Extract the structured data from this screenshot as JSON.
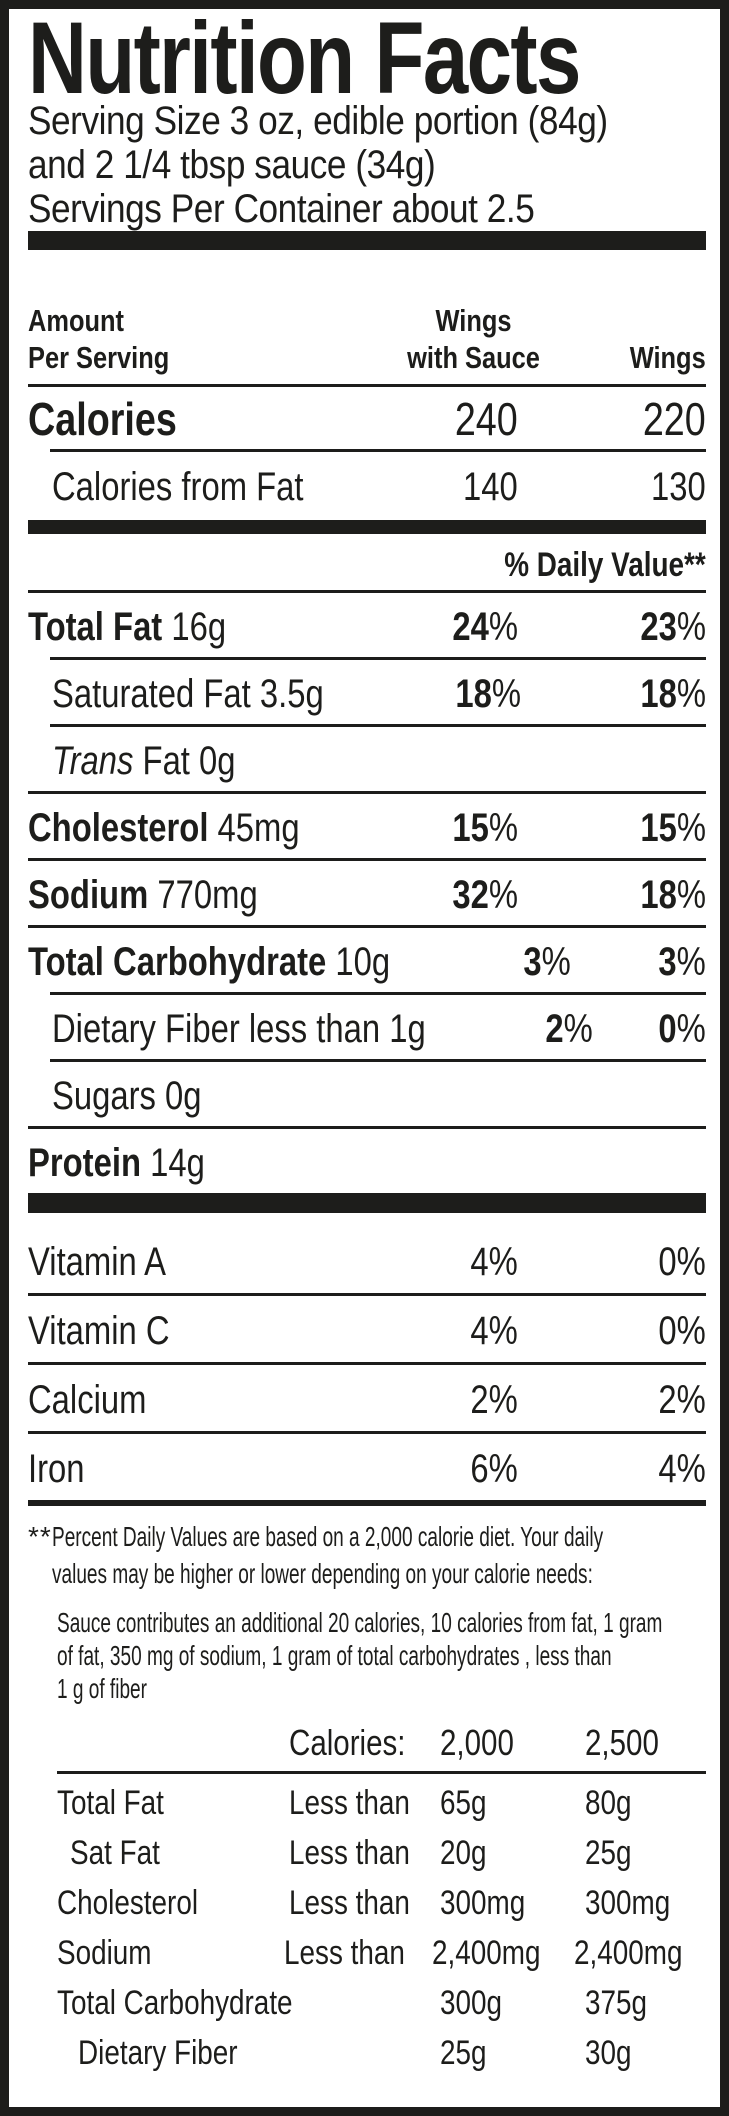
{
  "colors": {
    "ink": "#1d1d1b",
    "background": "#ffffff"
  },
  "label": {
    "title": "Nutrition Facts",
    "serving_lines": [
      "Serving Size 3 oz, edible portion (84g)",
      "and 2 1/4 tbsp sauce (34g)",
      "Servings Per Container about 2.5"
    ],
    "columns": {
      "amount_line1": "Amount",
      "amount_line2": "Per Serving",
      "with_sauce_line1": "Wings",
      "with_sauce_line2": "with Sauce",
      "wings": "Wings"
    },
    "calories": {
      "label": "Calories",
      "with_sauce": "240",
      "wings": "220"
    },
    "calories_from_fat": {
      "label": "Calories from Fat",
      "with_sauce": "140",
      "wings": "130"
    },
    "daily_value_header": "% Daily Value**",
    "percent_sign": "%",
    "nutrients": [
      {
        "name": "Total Fat",
        "amount": "16g",
        "dv_with_sauce": "24",
        "dv_wings": "23"
      },
      {
        "name": "Saturated Fat",
        "amount": "3.5g",
        "dv_with_sauce": "18",
        "dv_wings": "18"
      },
      {
        "name": "Trans",
        "amount": "Fat 0g"
      },
      {
        "name": "Cholesterol",
        "amount": "45mg",
        "dv_with_sauce": "15",
        "dv_wings": "15"
      },
      {
        "name": "Sodium",
        "amount": "770mg",
        "dv_with_sauce": "32",
        "dv_wings": "18"
      },
      {
        "name": "Total Carbohydrate",
        "amount": "10g",
        "dv_with_sauce": "3",
        "dv_wings": "3"
      },
      {
        "name": "Dietary Fiber",
        "amount": "less than 1g",
        "dv_with_sauce": "2",
        "dv_wings": "0"
      },
      {
        "name": "Sugars",
        "amount": "0g"
      },
      {
        "name": "Protein",
        "amount": "14g"
      }
    ],
    "vitamins": [
      {
        "name": "Vitamin A",
        "dv_with_sauce": "4%",
        "dv_wings": "0%"
      },
      {
        "name": "Vitamin C",
        "dv_with_sauce": "4%",
        "dv_wings": "0%"
      },
      {
        "name": "Calcium",
        "dv_with_sauce": "2%",
        "dv_wings": "2%"
      },
      {
        "name": "Iron",
        "dv_with_sauce": "6%",
        "dv_wings": "4%"
      }
    ],
    "footnote": {
      "marker": "**",
      "line1": "Percent Daily Values are based on a 2,000 calorie diet. Your daily",
      "line2": "values may be higher or lower depending on your calorie needs:"
    },
    "sauce_note_lines": [
      "Sauce contributes an additional 20 calories, 10 calories from fat, 1 gram",
      "of fat, 350 mg of sodium, 1 gram of total carbohydrates , less than",
      "1 g of fiber"
    ],
    "reference_table": {
      "header_label": "Calories:",
      "col_2000": "2,000",
      "col_2500": "2,500",
      "rows": [
        {
          "name": "Total Fat",
          "qualifier": "Less than",
          "v2000": "65g",
          "v2500": "80g"
        },
        {
          "name": "Sat Fat",
          "qualifier": "Less than",
          "v2000": "20g",
          "v2500": "25g"
        },
        {
          "name": "Cholesterol",
          "qualifier": "Less than",
          "v2000": "300mg",
          "v2500": "300mg"
        },
        {
          "name": "Sodium",
          "qualifier": "Less than",
          "v2000": "2,400mg",
          "v2500": "2,400mg"
        },
        {
          "name": "Total Carbohydrate",
          "qualifier": "",
          "v2000": "300g",
          "v2500": "375g"
        },
        {
          "name": "Dietary Fiber",
          "qualifier": "",
          "v2000": "25g",
          "v2500": "30g"
        }
      ]
    }
  }
}
